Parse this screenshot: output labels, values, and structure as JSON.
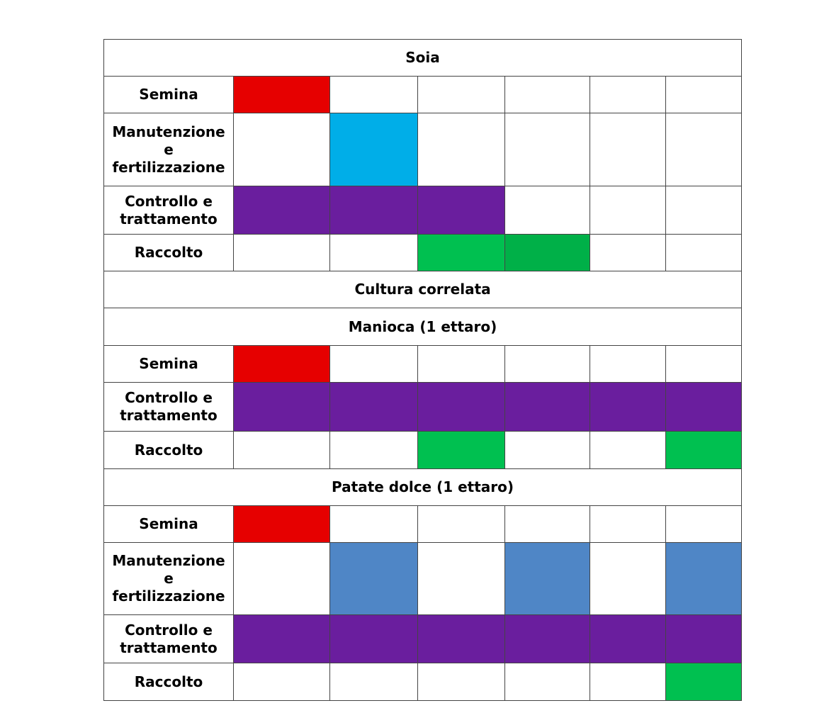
{
  "table": {
    "rows": [
      {
        "title": "Soia"
      },
      {
        "label": "Semina",
        "cells": [
          "#e60000",
          null,
          null,
          null,
          null,
          null
        ]
      },
      {
        "label": "Manutenzione e fertilizzazione",
        "cells": [
          null,
          "#00aee8",
          null,
          null,
          null,
          null
        ]
      },
      {
        "label": "Controllo e trattamento",
        "cells": [
          "#6a1e9e",
          "#6a1e9e",
          "#6a1e9e",
          null,
          null,
          null
        ]
      },
      {
        "label": "Raccolto",
        "cells": [
          null,
          null,
          "#00c050",
          "#00b048",
          null,
          null
        ]
      },
      {
        "title": "Cultura correlata"
      },
      {
        "title": "Manioca (1 ettaro)"
      },
      {
        "label": "Semina",
        "cells": [
          "#e60000",
          null,
          null,
          null,
          null,
          null
        ]
      },
      {
        "label": "Controllo e trattamento",
        "cells": [
          "#6a1e9e",
          "#6a1e9e",
          "#6a1e9e",
          "#6a1e9e",
          "#6a1e9e",
          "#6a1e9e"
        ]
      },
      {
        "label": "Raccolto",
        "cells": [
          null,
          null,
          "#00c050",
          null,
          null,
          "#00c050"
        ]
      },
      {
        "title": "Patate dolce (1 ettaro)"
      },
      {
        "label": "Semina",
        "cells": [
          "#e60000",
          null,
          null,
          null,
          null,
          null
        ]
      },
      {
        "label": "Manutenzione e fertilizzazione",
        "cells": [
          null,
          "#4f86c6",
          null,
          "#4f86c6",
          null,
          "#4f86c6"
        ]
      },
      {
        "label": "Controllo e trattamento",
        "cells": [
          "#6a1e9e",
          "#6a1e9e",
          "#6a1e9e",
          "#6a1e9e",
          "#6a1e9e",
          "#6a1e9e"
        ]
      },
      {
        "label": "Raccolto",
        "cells": [
          null,
          null,
          null,
          null,
          null,
          "#00c050"
        ]
      }
    ]
  }
}
